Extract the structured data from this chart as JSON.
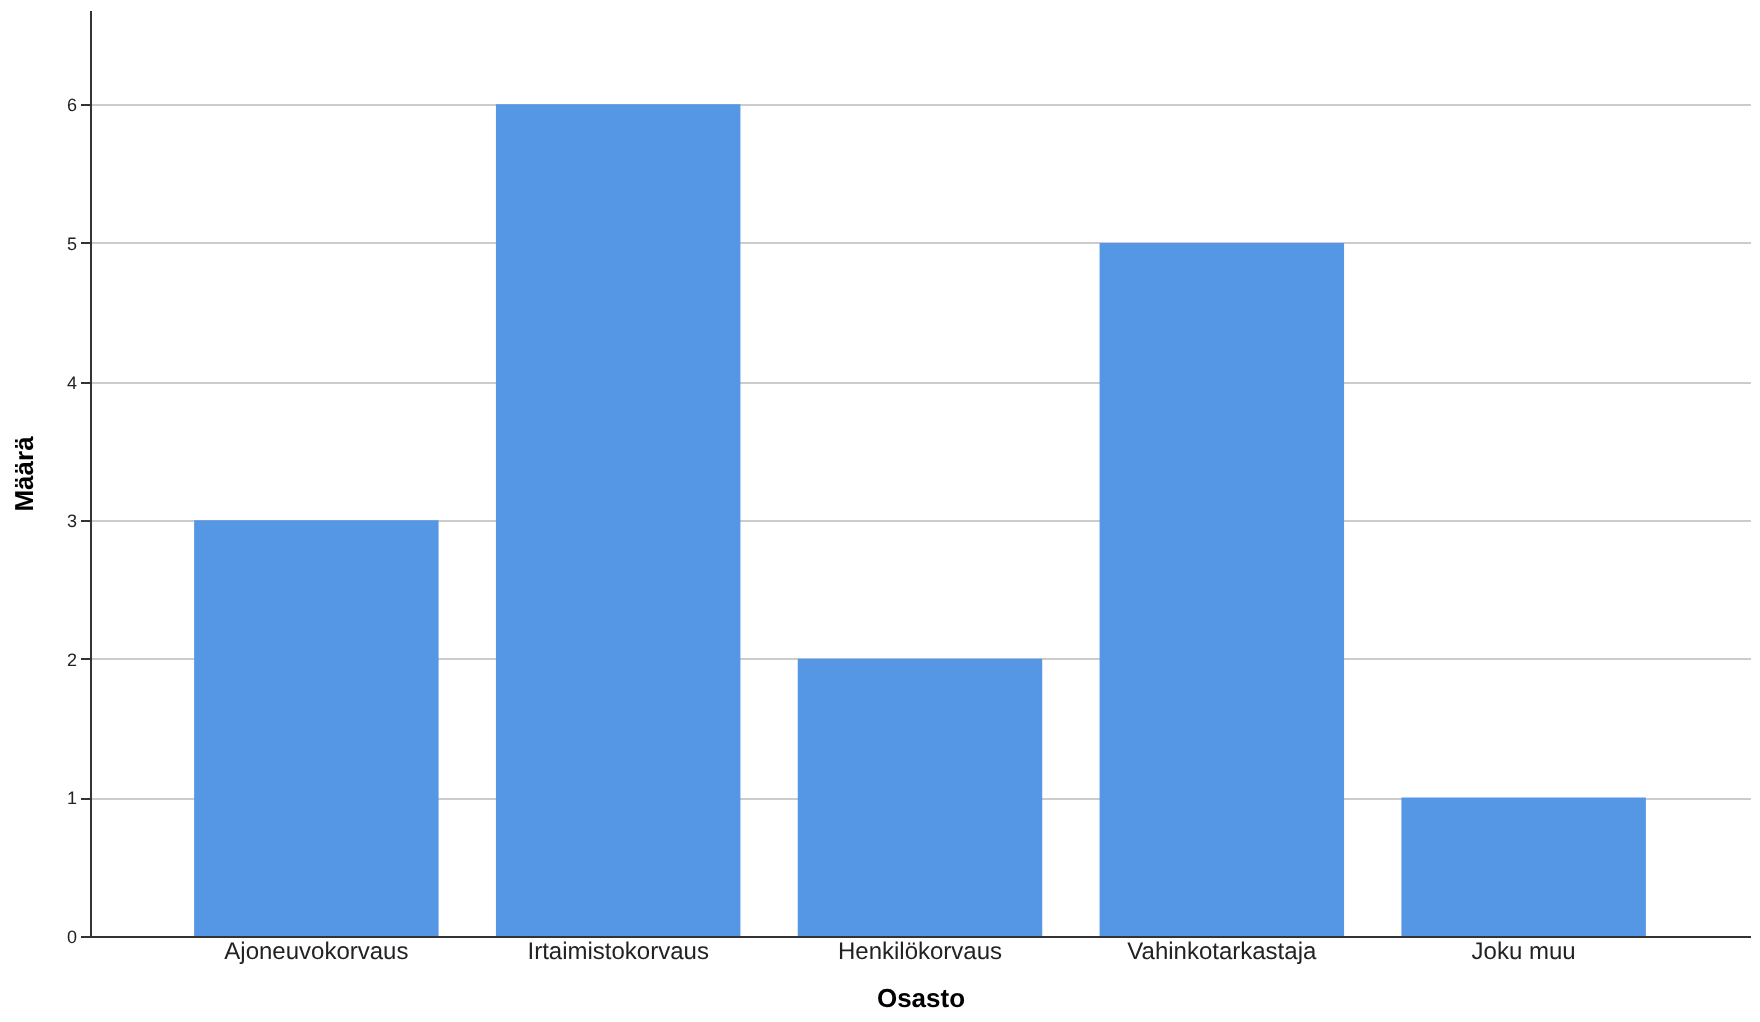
{
  "chart_data": {
    "type": "bar",
    "xlabel": "Osasto",
    "ylabel": "Määrä",
    "categories": [
      "Ajoneuvokorvaus",
      "Irtaimistokorvaus",
      "Henkilökorvaus",
      "Vahinkotarkastaja",
      "Joku muu"
    ],
    "values": [
      3,
      6,
      2,
      5,
      1
    ],
    "color": "#5596e5",
    "ylim": [
      0,
      6.68
    ],
    "yticks": [
      0,
      1,
      2,
      3,
      4,
      5,
      6
    ],
    "grid": "y"
  }
}
